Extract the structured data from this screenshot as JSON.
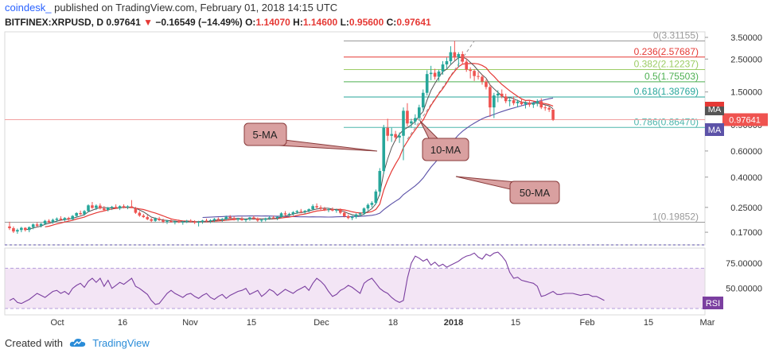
{
  "header": {
    "author": "coindesk_",
    "publish_text": "published on TradingView.com, February 01, 2018 14:15 UTC",
    "symbol": "BITFINEX:XRPUSD, D",
    "price": "0.97641",
    "change_arrow": "▼",
    "change": "−0.16549 (−14.49%)",
    "o_label": "O:",
    "o_value": "1.14070",
    "h_label": "H:",
    "h_value": "1.14600",
    "l_label": "L:",
    "l_value": "0.95600",
    "c_label": "C:",
    "c_value": "0.97641"
  },
  "footer": {
    "created_with": "Created with",
    "brand": "TradingView"
  },
  "colors": {
    "up": "#26a69a",
    "down": "#ef5350",
    "ma5": "#555555",
    "ma10": "#e53935",
    "ma50": "#5c52a8",
    "rsi": "#7b3fa0",
    "rsi_band": "#f3e5f5",
    "fib": "#aaaaaa"
  },
  "chart_data": {
    "type": "candlestick",
    "price_axis": {
      "scale": "log",
      "ticks": [
        "3.50000",
        "2.50000",
        "1.50000",
        "0.90000",
        "0.60000",
        "0.40000",
        "0.25000",
        "0.17000"
      ],
      "current_price_label": "0.97641"
    },
    "time_axis": {
      "ticks": [
        "Oct",
        "16",
        "Nov",
        "15",
        "Dec",
        "18",
        "2018",
        "15",
        "Feb",
        "15",
        "Mar"
      ]
    },
    "fibonacci": [
      {
        "label": "0(3.31155)",
        "price": 3.31155
      },
      {
        "label": "0.236(2.57687)",
        "price": 2.57687
      },
      {
        "label": "0.382(2.12237)",
        "price": 2.12237
      },
      {
        "label": "0.5(1.75503)",
        "price": 1.75503
      },
      {
        "label": "0.618(1.38769)",
        "price": 1.38769
      },
      {
        "label": "0.786(0.86470)",
        "price": 0.8647
      },
      {
        "label": "1(0.19852)",
        "price": 0.19852
      }
    ],
    "fib_colors": [
      "#999999",
      "#e53935",
      "#9ccc65",
      "#4caf50",
      "#26a69a",
      "#4db6ac",
      "#999999"
    ],
    "annotations": [
      {
        "text": "5-MA"
      },
      {
        "text": "10-MA"
      },
      {
        "text": "50-MA"
      }
    ],
    "ma_tags": [
      "MA",
      "MA"
    ],
    "rsi": {
      "label": "RSI",
      "ticks": [
        "75.00000",
        "50.00000"
      ],
      "overbought": 70,
      "oversold": 30,
      "values": [
        38,
        40,
        36,
        35,
        37,
        39,
        42,
        45,
        43,
        41,
        44,
        47,
        48,
        45,
        47,
        44,
        50,
        53,
        55,
        51,
        57,
        60,
        56,
        60,
        52,
        58,
        50,
        53,
        56,
        54,
        57,
        60,
        52,
        50,
        47,
        44,
        38,
        34,
        35,
        40,
        45,
        48,
        45,
        43,
        41,
        44,
        45,
        42,
        40,
        43,
        45,
        41,
        39,
        42,
        44,
        40,
        43,
        45,
        47,
        48,
        50,
        44,
        46,
        48,
        42,
        45,
        49,
        47,
        43,
        46,
        49,
        47,
        45,
        48,
        50,
        52,
        48,
        55,
        60,
        57,
        53,
        47,
        42,
        44,
        48,
        50,
        53,
        51,
        48,
        45,
        55,
        58,
        60,
        55,
        50,
        47,
        45,
        41,
        38,
        36,
        38,
        60,
        75,
        82,
        80,
        77,
        79,
        73,
        76,
        72,
        74,
        71,
        73,
        75,
        77,
        80,
        82,
        83,
        85,
        81,
        79,
        84,
        82,
        85,
        86,
        82,
        77,
        66,
        60,
        61,
        58,
        57,
        56,
        55,
        52,
        42,
        43,
        45,
        47,
        44,
        44,
        45,
        45,
        45,
        44,
        43,
        44,
        44,
        42,
        42,
        40,
        38
      ]
    },
    "candles": [
      {
        "o": 0.186,
        "h": 0.2,
        "l": 0.176,
        "c": 0.181
      },
      {
        "o": 0.181,
        "h": 0.186,
        "l": 0.168,
        "c": 0.172
      },
      {
        "o": 0.172,
        "h": 0.18,
        "l": 0.166,
        "c": 0.176
      },
      {
        "o": 0.176,
        "h": 0.185,
        "l": 0.17,
        "c": 0.182
      },
      {
        "o": 0.182,
        "h": 0.184,
        "l": 0.172,
        "c": 0.176
      },
      {
        "o": 0.176,
        "h": 0.186,
        "l": 0.17,
        "c": 0.184
      },
      {
        "o": 0.184,
        "h": 0.195,
        "l": 0.178,
        "c": 0.192
      },
      {
        "o": 0.192,
        "h": 0.198,
        "l": 0.185,
        "c": 0.188
      },
      {
        "o": 0.188,
        "h": 0.196,
        "l": 0.183,
        "c": 0.194
      },
      {
        "o": 0.194,
        "h": 0.206,
        "l": 0.19,
        "c": 0.203
      },
      {
        "o": 0.203,
        "h": 0.208,
        "l": 0.196,
        "c": 0.199
      },
      {
        "o": 0.199,
        "h": 0.21,
        "l": 0.194,
        "c": 0.206
      },
      {
        "o": 0.206,
        "h": 0.214,
        "l": 0.2,
        "c": 0.21
      },
      {
        "o": 0.21,
        "h": 0.218,
        "l": 0.203,
        "c": 0.206
      },
      {
        "o": 0.206,
        "h": 0.215,
        "l": 0.201,
        "c": 0.212
      },
      {
        "o": 0.212,
        "h": 0.216,
        "l": 0.204,
        "c": 0.208
      },
      {
        "o": 0.208,
        "h": 0.222,
        "l": 0.205,
        "c": 0.219
      },
      {
        "o": 0.219,
        "h": 0.232,
        "l": 0.215,
        "c": 0.229
      },
      {
        "o": 0.229,
        "h": 0.238,
        "l": 0.222,
        "c": 0.225
      },
      {
        "o": 0.225,
        "h": 0.24,
        "l": 0.22,
        "c": 0.236
      },
      {
        "o": 0.236,
        "h": 0.262,
        "l": 0.232,
        "c": 0.258
      },
      {
        "o": 0.258,
        "h": 0.272,
        "l": 0.245,
        "c": 0.248
      },
      {
        "o": 0.248,
        "h": 0.262,
        "l": 0.24,
        "c": 0.257
      },
      {
        "o": 0.257,
        "h": 0.266,
        "l": 0.242,
        "c": 0.246
      },
      {
        "o": 0.246,
        "h": 0.255,
        "l": 0.236,
        "c": 0.24
      },
      {
        "o": 0.24,
        "h": 0.252,
        "l": 0.235,
        "c": 0.249
      },
      {
        "o": 0.249,
        "h": 0.256,
        "l": 0.24,
        "c": 0.252
      },
      {
        "o": 0.252,
        "h": 0.262,
        "l": 0.244,
        "c": 0.246
      },
      {
        "o": 0.246,
        "h": 0.258,
        "l": 0.24,
        "c": 0.255
      },
      {
        "o": 0.255,
        "h": 0.262,
        "l": 0.246,
        "c": 0.25
      },
      {
        "o": 0.25,
        "h": 0.258,
        "l": 0.243,
        "c": 0.254
      },
      {
        "o": 0.254,
        "h": 0.28,
        "l": 0.25,
        "c": 0.247
      },
      {
        "o": 0.247,
        "h": 0.252,
        "l": 0.226,
        "c": 0.23
      },
      {
        "o": 0.23,
        "h": 0.236,
        "l": 0.216,
        "c": 0.22
      },
      {
        "o": 0.22,
        "h": 0.226,
        "l": 0.212,
        "c": 0.215
      },
      {
        "o": 0.215,
        "h": 0.222,
        "l": 0.205,
        "c": 0.208
      },
      {
        "o": 0.208,
        "h": 0.212,
        "l": 0.198,
        "c": 0.203
      },
      {
        "o": 0.203,
        "h": 0.214,
        "l": 0.2,
        "c": 0.21
      },
      {
        "o": 0.21,
        "h": 0.216,
        "l": 0.202,
        "c": 0.205
      },
      {
        "o": 0.205,
        "h": 0.21,
        "l": 0.196,
        "c": 0.2
      },
      {
        "o": 0.2,
        "h": 0.206,
        "l": 0.193,
        "c": 0.203
      },
      {
        "o": 0.203,
        "h": 0.208,
        "l": 0.197,
        "c": 0.199
      },
      {
        "o": 0.199,
        "h": 0.204,
        "l": 0.192,
        "c": 0.201
      },
      {
        "o": 0.201,
        "h": 0.207,
        "l": 0.196,
        "c": 0.198
      },
      {
        "o": 0.198,
        "h": 0.203,
        "l": 0.191,
        "c": 0.2
      },
      {
        "o": 0.2,
        "h": 0.206,
        "l": 0.196,
        "c": 0.203
      },
      {
        "o": 0.203,
        "h": 0.208,
        "l": 0.197,
        "c": 0.2
      },
      {
        "o": 0.2,
        "h": 0.205,
        "l": 0.193,
        "c": 0.197
      },
      {
        "o": 0.197,
        "h": 0.203,
        "l": 0.186,
        "c": 0.2
      },
      {
        "o": 0.2,
        "h": 0.206,
        "l": 0.194,
        "c": 0.204
      },
      {
        "o": 0.204,
        "h": 0.21,
        "l": 0.198,
        "c": 0.202
      },
      {
        "o": 0.202,
        "h": 0.208,
        "l": 0.196,
        "c": 0.205
      },
      {
        "o": 0.205,
        "h": 0.212,
        "l": 0.199,
        "c": 0.209
      },
      {
        "o": 0.209,
        "h": 0.214,
        "l": 0.202,
        "c": 0.206
      },
      {
        "o": 0.206,
        "h": 0.212,
        "l": 0.2,
        "c": 0.209
      },
      {
        "o": 0.209,
        "h": 0.22,
        "l": 0.204,
        "c": 0.216
      },
      {
        "o": 0.216,
        "h": 0.222,
        "l": 0.208,
        "c": 0.212
      },
      {
        "o": 0.212,
        "h": 0.218,
        "l": 0.204,
        "c": 0.207
      },
      {
        "o": 0.207,
        "h": 0.213,
        "l": 0.201,
        "c": 0.21
      },
      {
        "o": 0.21,
        "h": 0.216,
        "l": 0.203,
        "c": 0.205
      },
      {
        "o": 0.205,
        "h": 0.211,
        "l": 0.199,
        "c": 0.208
      },
      {
        "o": 0.208,
        "h": 0.216,
        "l": 0.203,
        "c": 0.214
      },
      {
        "o": 0.214,
        "h": 0.22,
        "l": 0.206,
        "c": 0.21
      },
      {
        "o": 0.21,
        "h": 0.214,
        "l": 0.2,
        "c": 0.204
      },
      {
        "o": 0.204,
        "h": 0.21,
        "l": 0.198,
        "c": 0.206
      },
      {
        "o": 0.206,
        "h": 0.213,
        "l": 0.201,
        "c": 0.211
      },
      {
        "o": 0.211,
        "h": 0.218,
        "l": 0.206,
        "c": 0.214
      },
      {
        "o": 0.214,
        "h": 0.22,
        "l": 0.208,
        "c": 0.212
      },
      {
        "o": 0.212,
        "h": 0.218,
        "l": 0.205,
        "c": 0.216
      },
      {
        "o": 0.216,
        "h": 0.232,
        "l": 0.212,
        "c": 0.228
      },
      {
        "o": 0.228,
        "h": 0.236,
        "l": 0.22,
        "c": 0.224
      },
      {
        "o": 0.224,
        "h": 0.23,
        "l": 0.216,
        "c": 0.226
      },
      {
        "o": 0.226,
        "h": 0.236,
        "l": 0.22,
        "c": 0.232
      },
      {
        "o": 0.232,
        "h": 0.24,
        "l": 0.226,
        "c": 0.236
      },
      {
        "o": 0.236,
        "h": 0.244,
        "l": 0.228,
        "c": 0.233
      },
      {
        "o": 0.233,
        "h": 0.24,
        "l": 0.226,
        "c": 0.237
      },
      {
        "o": 0.237,
        "h": 0.246,
        "l": 0.231,
        "c": 0.243
      },
      {
        "o": 0.243,
        "h": 0.262,
        "l": 0.238,
        "c": 0.255
      },
      {
        "o": 0.255,
        "h": 0.266,
        "l": 0.246,
        "c": 0.25
      },
      {
        "o": 0.25,
        "h": 0.258,
        "l": 0.24,
        "c": 0.245
      },
      {
        "o": 0.245,
        "h": 0.252,
        "l": 0.236,
        "c": 0.24
      },
      {
        "o": 0.24,
        "h": 0.248,
        "l": 0.232,
        "c": 0.243
      },
      {
        "o": 0.243,
        "h": 0.25,
        "l": 0.235,
        "c": 0.238
      },
      {
        "o": 0.238,
        "h": 0.245,
        "l": 0.23,
        "c": 0.241
      },
      {
        "o": 0.241,
        "h": 0.246,
        "l": 0.225,
        "c": 0.23
      },
      {
        "o": 0.23,
        "h": 0.236,
        "l": 0.214,
        "c": 0.218
      },
      {
        "o": 0.218,
        "h": 0.224,
        "l": 0.208,
        "c": 0.212
      },
      {
        "o": 0.212,
        "h": 0.22,
        "l": 0.205,
        "c": 0.216
      },
      {
        "o": 0.216,
        "h": 0.228,
        "l": 0.21,
        "c": 0.224
      },
      {
        "o": 0.224,
        "h": 0.232,
        "l": 0.217,
        "c": 0.228
      },
      {
        "o": 0.228,
        "h": 0.25,
        "l": 0.222,
        "c": 0.246
      },
      {
        "o": 0.246,
        "h": 0.266,
        "l": 0.238,
        "c": 0.26
      },
      {
        "o": 0.26,
        "h": 0.275,
        "l": 0.25,
        "c": 0.268
      },
      {
        "o": 0.268,
        "h": 0.33,
        "l": 0.262,
        "c": 0.32
      },
      {
        "o": 0.32,
        "h": 0.46,
        "l": 0.3,
        "c": 0.44
      },
      {
        "o": 0.44,
        "h": 0.9,
        "l": 0.42,
        "c": 0.86
      },
      {
        "o": 0.86,
        "h": 0.99,
        "l": 0.7,
        "c": 0.76
      },
      {
        "o": 0.76,
        "h": 0.86,
        "l": 0.69,
        "c": 0.78
      },
      {
        "o": 0.78,
        "h": 0.82,
        "l": 0.7,
        "c": 0.74
      },
      {
        "o": 0.74,
        "h": 0.8,
        "l": 0.68,
        "c": 0.76
      },
      {
        "o": 0.76,
        "h": 1.18,
        "l": 0.52,
        "c": 1.12
      },
      {
        "o": 1.12,
        "h": 1.26,
        "l": 0.88,
        "c": 0.92
      },
      {
        "o": 0.92,
        "h": 0.99,
        "l": 0.86,
        "c": 0.95
      },
      {
        "o": 0.95,
        "h": 1.06,
        "l": 0.9,
        "c": 1.0
      },
      {
        "o": 1.0,
        "h": 1.23,
        "l": 0.96,
        "c": 1.18
      },
      {
        "o": 1.18,
        "h": 1.56,
        "l": 1.12,
        "c": 1.48
      },
      {
        "o": 1.48,
        "h": 2.1,
        "l": 1.42,
        "c": 1.98
      },
      {
        "o": 1.98,
        "h": 2.25,
        "l": 1.8,
        "c": 2.02
      },
      {
        "o": 2.02,
        "h": 2.15,
        "l": 1.82,
        "c": 1.9
      },
      {
        "o": 1.9,
        "h": 2.12,
        "l": 1.78,
        "c": 2.06
      },
      {
        "o": 2.06,
        "h": 2.42,
        "l": 1.96,
        "c": 2.3
      },
      {
        "o": 2.3,
        "h": 2.56,
        "l": 2.15,
        "c": 2.42
      },
      {
        "o": 2.42,
        "h": 3.05,
        "l": 2.3,
        "c": 2.78
      },
      {
        "o": 2.78,
        "h": 3.31,
        "l": 2.45,
        "c": 2.56
      },
      {
        "o": 2.56,
        "h": 2.78,
        "l": 2.2,
        "c": 2.7
      },
      {
        "o": 2.7,
        "h": 2.82,
        "l": 2.3,
        "c": 2.4
      },
      {
        "o": 2.4,
        "h": 2.52,
        "l": 2.05,
        "c": 2.12
      },
      {
        "o": 2.12,
        "h": 2.2,
        "l": 1.85,
        "c": 2.08
      },
      {
        "o": 2.08,
        "h": 2.14,
        "l": 1.78,
        "c": 1.92
      },
      {
        "o": 1.92,
        "h": 2.05,
        "l": 1.82,
        "c": 1.9
      },
      {
        "o": 1.9,
        "h": 1.96,
        "l": 1.68,
        "c": 1.76
      },
      {
        "o": 1.76,
        "h": 1.82,
        "l": 1.56,
        "c": 1.62
      },
      {
        "o": 1.62,
        "h": 1.68,
        "l": 1.02,
        "c": 1.18
      },
      {
        "o": 1.18,
        "h": 1.48,
        "l": 1.0,
        "c": 1.42
      },
      {
        "o": 1.42,
        "h": 1.54,
        "l": 1.28,
        "c": 1.46
      },
      {
        "o": 1.46,
        "h": 1.56,
        "l": 1.36,
        "c": 1.4
      },
      {
        "o": 1.4,
        "h": 1.46,
        "l": 1.26,
        "c": 1.3
      },
      {
        "o": 1.3,
        "h": 1.38,
        "l": 1.2,
        "c": 1.32
      },
      {
        "o": 1.32,
        "h": 1.4,
        "l": 1.22,
        "c": 1.26
      },
      {
        "o": 1.26,
        "h": 1.33,
        "l": 1.18,
        "c": 1.29
      },
      {
        "o": 1.29,
        "h": 1.36,
        "l": 1.22,
        "c": 1.24
      },
      {
        "o": 1.24,
        "h": 1.3,
        "l": 1.16,
        "c": 1.27
      },
      {
        "o": 1.27,
        "h": 1.32,
        "l": 1.19,
        "c": 1.23
      },
      {
        "o": 1.23,
        "h": 1.29,
        "l": 1.17,
        "c": 1.26
      },
      {
        "o": 1.26,
        "h": 1.34,
        "l": 1.2,
        "c": 1.3
      },
      {
        "o": 1.3,
        "h": 1.36,
        "l": 1.15,
        "c": 1.18
      },
      {
        "o": 1.18,
        "h": 1.22,
        "l": 1.12,
        "c": 1.17
      },
      {
        "o": 1.17,
        "h": 1.2,
        "l": 1.1,
        "c": 1.141
      },
      {
        "o": 1.141,
        "h": 1.146,
        "l": 0.956,
        "c": 0.976
      }
    ]
  }
}
